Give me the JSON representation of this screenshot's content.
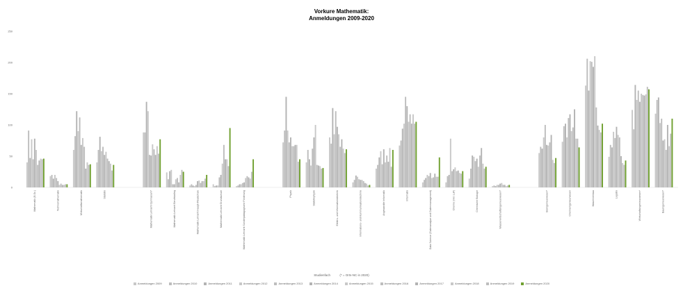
{
  "chart_data": {
    "type": "bar",
    "title_line1": "Vorkure Mathematik:",
    "title_line2": "Anmeldungen 2009-2020",
    "xlabel": "Studienfach",
    "xlabel_note": "(* = Orts-NC in 2020)",
    "ylim": [
      0,
      250
    ],
    "yticks": [
      0,
      50,
      100,
      150,
      200,
      250
    ],
    "grid": false,
    "legend_position": "bottom",
    "series_names": [
      "Anmeldungen 2009",
      "Anmeldungen 2010",
      "Anmeldungen 2011",
      "Anmeldungen 2012",
      "Anmeldungen 2013",
      "Anmeldungen 2014",
      "Anmeldungen 2015",
      "Anmeldungen 2016",
      "Anmeldungen 2017",
      "Anmeldungen 2018",
      "Anmeldungen 2019",
      "Anmeldungen 2020"
    ],
    "colors": {
      "series": [
        "#c8c8c8",
        "#bdbdbd",
        "#b3b3b3",
        "#c8c8c8",
        "#bdbdbd",
        "#b3b3b3",
        "#c8c8c8",
        "#bdbdbd",
        "#b3b3b3",
        "#c8c8c8",
        "#bdbdbd",
        "#70a030"
      ],
      "axis_text": "#666666",
      "title": "#000000"
    },
    "categories": [
      {
        "label": "Mathematik (B.Sc.)",
        "values": [
          40,
          91,
          47,
          77,
          45,
          78,
          60,
          36,
          43,
          46,
          45,
          46
        ]
      },
      {
        "label": "Technomathematik",
        "values": [
          18,
          20,
          14,
          20,
          15,
          10,
          4,
          6,
          4,
          4,
          5,
          5
        ]
      },
      {
        "label": "Wirtschaftsmathematik",
        "values": [
          60,
          82,
          122,
          90,
          112,
          68,
          79,
          65,
          30,
          40,
          36,
          37
        ]
      },
      {
        "label": "Statistik",
        "values": [
          40,
          60,
          81,
          58,
          65,
          52,
          57,
          46,
          42,
          38,
          27,
          36
        ]
      },
      {
        "label": "Mathematik Lehramt Gymnasium*",
        "values": [
          88,
          88,
          137,
          122,
          52,
          51,
          69,
          61,
          52,
          66,
          54,
          77
        ]
      },
      {
        "label": "Mathematik Lehramt Berufskolleg",
        "values": [
          24,
          13,
          26,
          28,
          5,
          5,
          13,
          15,
          8,
          20,
          28,
          25
        ]
      },
      {
        "label": "Mathematik Lehramt Haupt-/Realschule",
        "values": [
          3,
          5,
          3,
          2,
          4,
          10,
          11,
          7,
          10,
          10,
          14,
          20
        ]
      },
      {
        "label": "Mathematik Lehramt Grundschule",
        "values": [
          5,
          2,
          3,
          3,
          16,
          20,
          38,
          68,
          45,
          45,
          34,
          95
        ]
      },
      {
        "label": "Mathematik Lehramt Sonderpädagogische Förderung",
        "values": [
          2,
          3,
          5,
          5,
          7,
          8,
          15,
          18,
          16,
          14,
          25,
          45
        ]
      },
      {
        "label": "Physik",
        "values": [
          72,
          91,
          145,
          91,
          72,
          80,
          66,
          66,
          68,
          68,
          41,
          45
        ]
      },
      {
        "label": "Statistikphysik",
        "values": [
          40,
          60,
          45,
          35,
          62,
          80,
          100,
          36,
          35,
          34,
          30,
          31
        ]
      },
      {
        "label": "Elektro- und Informationstechnik",
        "values": [
          80,
          70,
          127,
          85,
          122,
          97,
          85,
          65,
          77,
          62,
          55,
          61
        ]
      },
      {
        "label": "Informations- und Kommunikationstechnik",
        "values": [
          8,
          12,
          19,
          17,
          13,
          12,
          12,
          10,
          7,
          6,
          3,
          4
        ]
      },
      {
        "label": "Angewandte Informatik",
        "values": [
          30,
          36,
          48,
          58,
          37,
          61,
          40,
          51,
          41,
          63,
          33,
          60
        ]
      },
      {
        "label": "Informatik",
        "values": [
          67,
          75,
          94,
          102,
          145,
          130,
          105,
          117,
          102,
          117,
          102,
          105
        ]
      },
      {
        "label": "Data Science (Datenanalyse und Datenmanagement)",
        "values": [
          8,
          12,
          15,
          20,
          18,
          23,
          15,
          16,
          22,
          17,
          17,
          48
        ]
      },
      {
        "label": "Chemie (inkl. LuF)",
        "values": [
          8,
          18,
          20,
          78,
          26,
          29,
          32,
          26,
          27,
          23,
          22,
          26
        ]
      },
      {
        "label": "Chemische Biologie",
        "values": [
          14,
          30,
          51,
          49,
          42,
          46,
          33,
          51,
          63,
          38,
          30,
          33
        ]
      },
      {
        "label": "Wasserwirtschaftsingenieurwesen*",
        "values": [
          2,
          3,
          2,
          4,
          4,
          6,
          7,
          4,
          4,
          2,
          3,
          4
        ]
      },
      {
        "label": "Bioingenieurwesen*",
        "values": [
          55,
          65,
          62,
          80,
          100,
          68,
          67,
          72,
          84,
          44,
          39,
          47
        ]
      },
      {
        "label": "Chemieingenieurwesen",
        "values": [
          73,
          98,
          102,
          80,
          111,
          117,
          90,
          96,
          125,
          78,
          78,
          64
        ]
      },
      {
        "label": "Maschinenbau",
        "values": [
          163,
          206,
          155,
          202,
          201,
          193,
          210,
          128,
          99,
          92,
          88,
          102
        ]
      },
      {
        "label": "Logistik",
        "values": [
          49,
          68,
          64,
          89,
          79,
          97,
          84,
          80,
          50,
          39,
          36,
          43
        ]
      },
      {
        "label": "Wirtschaftsingenieurwesen*",
        "values": [
          124,
          93,
          164,
          140,
          155,
          137,
          150,
          148,
          147,
          149,
          161,
          157
        ]
      },
      {
        "label": "Bauingenieurwesen*",
        "values": [
          118,
          140,
          144,
          103,
          110,
          75,
          77,
          60,
          100,
          66,
          86,
          110
        ]
      }
    ],
    "group_gap_after": [
      3,
      8,
      18
    ]
  }
}
